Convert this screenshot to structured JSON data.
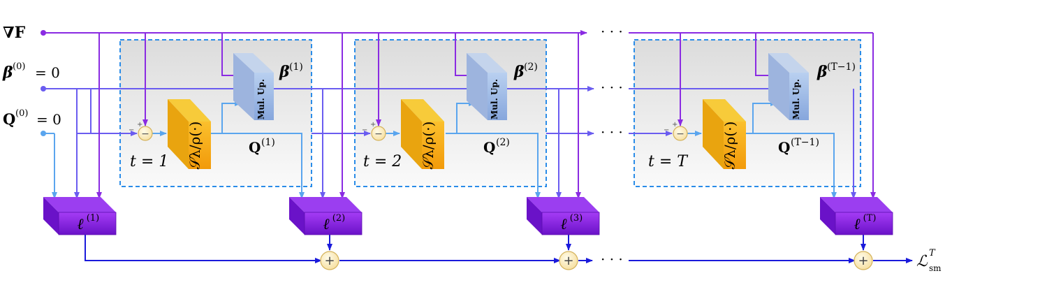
{
  "inputs": {
    "gradF": "∇F",
    "beta0_sym": "β",
    "beta0_sup": "(0)",
    "beta0_eq": "= 0",
    "Q0_sym": "Q",
    "Q0_sup": "(0)",
    "Q0_eq": "= 0"
  },
  "stages": [
    {
      "t_label": "t = 1",
      "beta_sup": "(1)",
      "q_sup": "(1)"
    },
    {
      "t_label": "t = 2",
      "beta_sup": "(2)",
      "q_sup": "(2)"
    },
    {
      "t_label": "t = T",
      "beta_sup": "(T−1)",
      "q_sup": "(T−1)"
    }
  ],
  "block_labels": {
    "mul_up": "Mul. Up.",
    "shrink_sym": "𝒮",
    "shrink_sub": "λ/ρ",
    "shrink_arg": "(·)",
    "minus_sign": "−",
    "plus_sign": "+"
  },
  "loss_blocks": [
    "(1)",
    "(2)",
    "(3)",
    "(T)"
  ],
  "ellipsis": "· · ·",
  "output": {
    "sym": "ℒ",
    "sup": "T",
    "sub": "sm"
  },
  "colors": {
    "gradF": "#8a2be2",
    "beta": "#6a5cf0",
    "q": "#5aa5ee",
    "loss": "#1a1adb",
    "cube_purple": "#8a2be2",
    "cube_orange": "#f5a20f",
    "cube_blue": "#8fb0e0",
    "stage_border": "#2a8ce8"
  }
}
